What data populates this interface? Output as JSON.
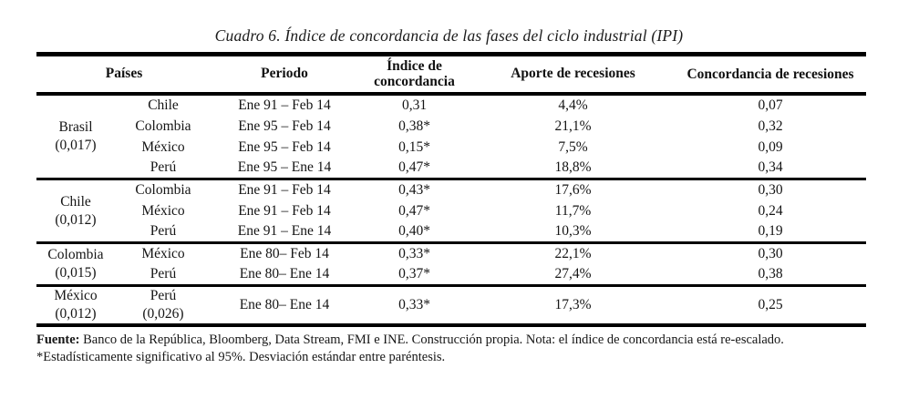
{
  "title": "Cuadro 6. Índice de concordancia de las fases del ciclo industrial (IPI)",
  "table": {
    "headers": {
      "paises": "Países",
      "periodo": "Periodo",
      "indice": "Índice de concordancia",
      "aporte": "Aporte de recesiones",
      "concordancia": "Concordancia de recesiones"
    },
    "groups": [
      {
        "country": "Brasil",
        "sd": "(0,017)",
        "rows": [
          {
            "pair": "Chile",
            "periodo": "Ene 91 – Feb 14",
            "indice": "0,31",
            "aporte": "4,4%",
            "concordancia": "0,07"
          },
          {
            "pair": "Colombia",
            "periodo": "Ene 95 – Feb 14",
            "indice": "0,38*",
            "aporte": "21,1%",
            "concordancia": "0,32"
          },
          {
            "pair": "México",
            "periodo": "Ene 95 – Feb 14",
            "indice": "0,15*",
            "aporte": "7,5%",
            "concordancia": "0,09"
          },
          {
            "pair": "Perú",
            "periodo": "Ene 95 – Ene 14",
            "indice": "0,47*",
            "aporte": "18,8%",
            "concordancia": "0,34"
          }
        ]
      },
      {
        "country": "Chile",
        "sd": "(0,012)",
        "rows": [
          {
            "pair": "Colombia",
            "periodo": "Ene 91 – Feb 14",
            "indice": "0,43*",
            "aporte": "17,6%",
            "concordancia": "0,30"
          },
          {
            "pair": "México",
            "periodo": "Ene 91 – Feb 14",
            "indice": "0,47*",
            "aporte": "11,7%",
            "concordancia": "0,24"
          },
          {
            "pair": "Perú",
            "periodo": "Ene 91 – Ene 14",
            "indice": "0,40*",
            "aporte": "10,3%",
            "concordancia": "0,19"
          }
        ]
      },
      {
        "country": "Colombia",
        "sd": "(0,015)",
        "rows": [
          {
            "pair": "México",
            "periodo": "Ene 80– Feb 14",
            "indice": "0,33*",
            "aporte": "22,1%",
            "concordancia": "0,30"
          },
          {
            "pair": "Perú",
            "periodo": "Ene 80– Ene 14",
            "indice": "0,37*",
            "aporte": "27,4%",
            "concordancia": "0,38"
          }
        ]
      },
      {
        "country": "México",
        "sd": "(0,012)",
        "rows": [
          {
            "pair": "Perú",
            "pair_sd": "(0,026)",
            "periodo": "Ene 80– Ene 14",
            "indice": "0,33*",
            "aporte": "17,3%",
            "concordancia": "0,25"
          }
        ]
      }
    ]
  },
  "footer": {
    "fuente_label": "Fuente:",
    "fuente_text": " Banco de la República, Bloomberg, Data Stream, FMI e INE. Construcción propia. Nota: el índice de concordancia está re-escalado.",
    "note2": "*Estadísticamente significativo al 95%. Desviación estándar entre paréntesis."
  }
}
